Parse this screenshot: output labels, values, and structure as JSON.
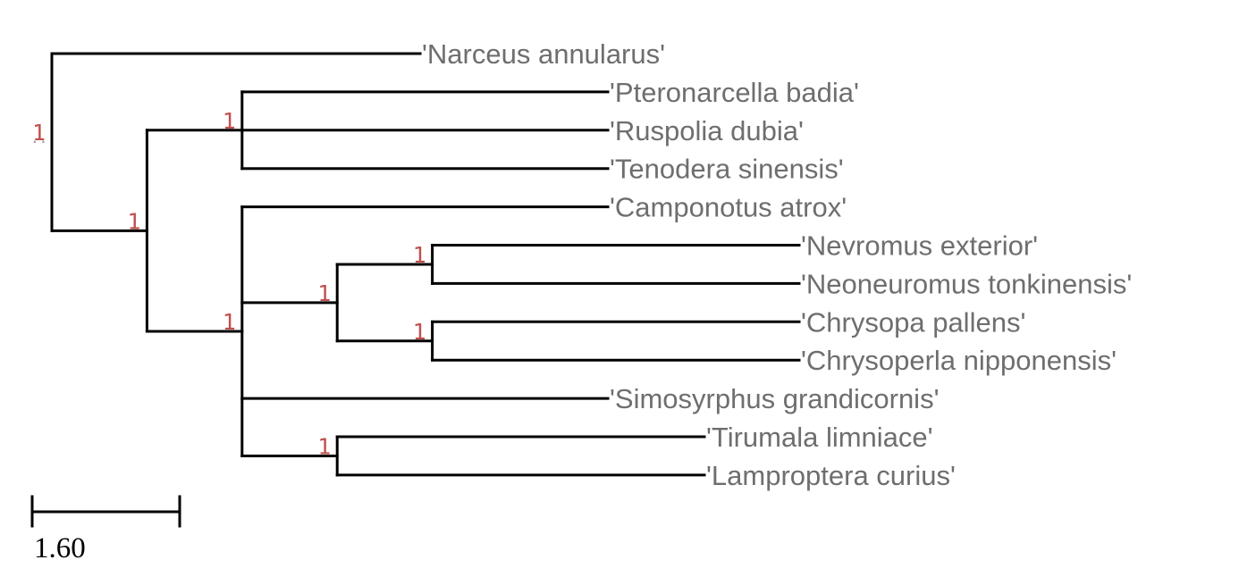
{
  "tree": {
    "root": {
      "support": "1",
      "children": [
        {
          "name": "'Narceus annularus'"
        },
        {
          "support": "1",
          "children": [
            {
              "support": "1",
              "children": [
                {
                  "name": "'Pteronarcella badia'"
                },
                {
                  "name": "'Ruspolia dubia'"
                },
                {
                  "name": "'Tenodera sinensis'"
                }
              ]
            },
            {
              "support": "1",
              "children": [
                {
                  "name": "'Camponotus atrox'"
                },
                {
                  "support": "1",
                  "children": [
                    {
                      "support": "1",
                      "children": [
                        {
                          "name": "'Nevromus exterior'"
                        },
                        {
                          "name": "'Neoneuromus tonkinensis'"
                        }
                      ]
                    },
                    {
                      "support": "1",
                      "children": [
                        {
                          "name": "'Chrysopa pallens'"
                        },
                        {
                          "name": "'Chrysoperla nipponensis'"
                        }
                      ]
                    }
                  ]
                },
                {
                  "name": "'Simosyrphus grandicornis'"
                },
                {
                  "support": "1",
                  "children": [
                    {
                      "name": "'Tirumala limniace'"
                    },
                    {
                      "name": "'Lamproptera curius'"
                    }
                  ]
                }
              ]
            }
          ]
        }
      ]
    }
  },
  "scale_bar": {
    "label": "1.60"
  },
  "colors": {
    "branch": "#000000",
    "tip_label": "#6e6e6e",
    "support": "#c0504d"
  }
}
